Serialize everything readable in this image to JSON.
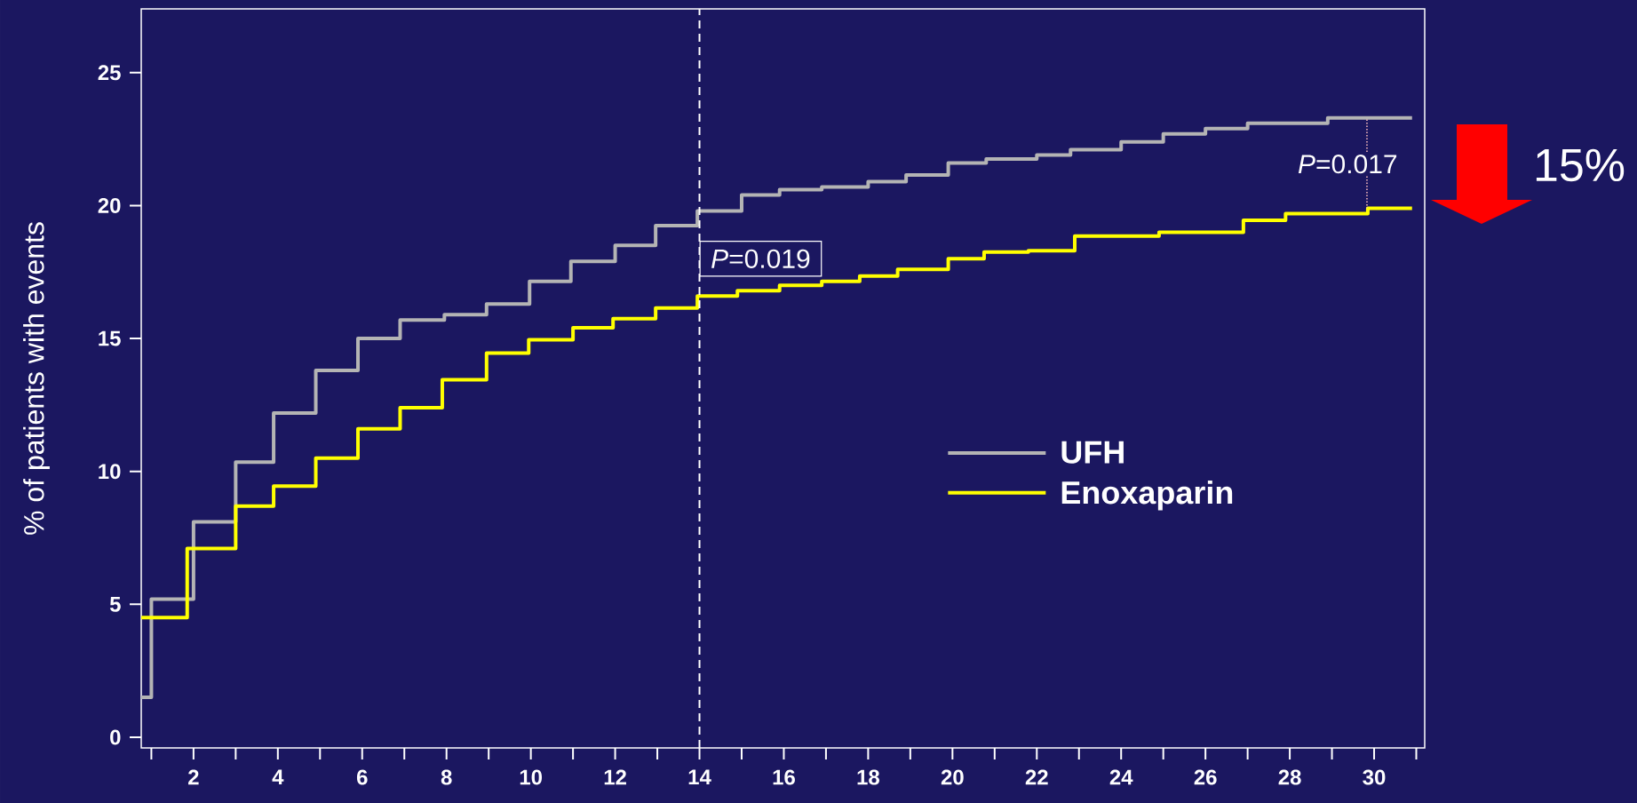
{
  "chart_data": {
    "type": "step",
    "ylabel": "% of patients with events",
    "series": [
      {
        "name": "UFH",
        "color": "#b4b4b4",
        "x": [
          0.76,
          1.0,
          2.0,
          3.0,
          3.9,
          4.9,
          5.9,
          6.9,
          7.95,
          8.95,
          9.97,
          10.95,
          12.0,
          12.96,
          13.95,
          15.0,
          15.9,
          16.9,
          18.0,
          18.9,
          19.9,
          20.8,
          22.0,
          22.8,
          24.0,
          25.0,
          26.0,
          27.0,
          28.9,
          30.9
        ],
        "values": [
          1.5,
          5.2,
          8.1,
          10.35,
          12.2,
          13.8,
          15.0,
          15.7,
          15.9,
          16.3,
          17.15,
          17.9,
          18.5,
          19.25,
          19.8,
          20.4,
          20.6,
          20.7,
          20.9,
          21.15,
          21.6,
          21.75,
          21.9,
          22.1,
          22.4,
          22.7,
          22.9,
          23.1,
          23.3,
          23.3
        ]
      },
      {
        "name": "Enoxaparin",
        "color": "#ffff00",
        "x": [
          0.76,
          1.85,
          3.0,
          3.9,
          4.9,
          5.9,
          6.9,
          7.9,
          8.95,
          9.95,
          11.0,
          11.95,
          12.96,
          13.95,
          14.9,
          15.9,
          16.9,
          17.8,
          18.7,
          19.9,
          20.75,
          21.8,
          22.9,
          24.9,
          26.9,
          27.9,
          29.85,
          30.9
        ],
        "values": [
          4.5,
          7.1,
          8.7,
          9.45,
          10.5,
          11.6,
          12.4,
          13.45,
          14.45,
          14.95,
          15.4,
          15.75,
          16.15,
          16.6,
          16.8,
          17.0,
          17.15,
          17.35,
          17.6,
          18.0,
          18.25,
          18.3,
          18.85,
          19.0,
          19.45,
          19.7,
          19.9,
          19.9
        ]
      }
    ],
    "xlim": [
      0.76,
      31.2
    ],
    "ylim": [
      -0.4,
      27.4
    ],
    "xticks": [
      {
        "value": 1,
        "label": null
      },
      2,
      {
        "value": 3,
        "label": null
      },
      4,
      {
        "value": 5,
        "label": null
      },
      6,
      {
        "value": 7,
        "label": null
      },
      8,
      {
        "value": 9,
        "label": null
      },
      10,
      {
        "value": 11,
        "label": null
      },
      12,
      {
        "value": 13,
        "label": null
      },
      14,
      {
        "value": 15,
        "label": null
      },
      16,
      {
        "value": 17,
        "label": null
      },
      18,
      {
        "value": 19,
        "label": null
      },
      20,
      {
        "value": 21,
        "label": null
      },
      22,
      {
        "value": 23,
        "label": null
      },
      24,
      {
        "value": 25,
        "label": null
      },
      26,
      {
        "value": 27,
        "label": null
      },
      28,
      {
        "value": 29,
        "label": null
      },
      30,
      {
        "value": 31,
        "label": null
      }
    ],
    "yticks": [
      0,
      5,
      10,
      15,
      20,
      25
    ],
    "ref_lines": [
      {
        "axis": "x",
        "value": 14,
        "color": "#ffffff",
        "line_style": "dashed"
      }
    ],
    "annotations": [
      {
        "text": "*P*=0.019",
        "x": 14,
        "y": 18
      },
      "*P*=0.017",
      "15%"
    ],
    "legend": "right",
    "grid": false,
    "marker": "none",
    "line_style": "solid"
  }
}
